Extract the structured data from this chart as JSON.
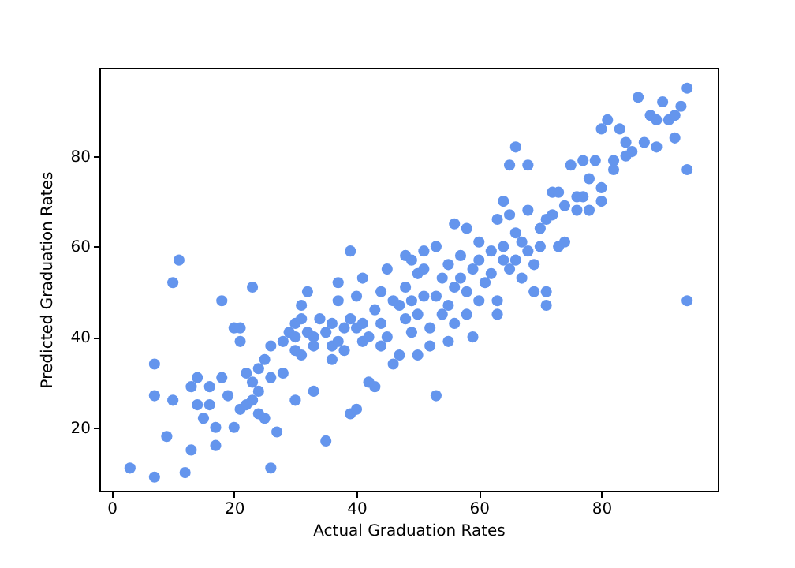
{
  "chart_data": {
    "type": "scatter",
    "xlabel": "Actual Graduation Rates",
    "ylabel": "Predicted Graduation Rates",
    "xlim": [
      -2,
      99
    ],
    "ylim": [
      6,
      99.5
    ],
    "xticks": [
      0,
      20,
      40,
      60,
      80
    ],
    "yticks": [
      20,
      40,
      60,
      80
    ],
    "grid": false,
    "marker": "circle",
    "series": [
      {
        "color": "#6495ed",
        "x": [
          3,
          7,
          7,
          7,
          9,
          10,
          11,
          10,
          12,
          13,
          13,
          14,
          14,
          15,
          16,
          16,
          17,
          17,
          18,
          18,
          19,
          20,
          20,
          21,
          21,
          21,
          22,
          22,
          23,
          23,
          23,
          24,
          24,
          24,
          25,
          25,
          26,
          26,
          26,
          27,
          28,
          28,
          29,
          30,
          30,
          30,
          30,
          31,
          31,
          31,
          32,
          32,
          33,
          33,
          33,
          34,
          35,
          35,
          36,
          36,
          36,
          37,
          37,
          37,
          38,
          38,
          39,
          39,
          39,
          40,
          40,
          40,
          41,
          41,
          41,
          42,
          42,
          43,
          43,
          44,
          44,
          44,
          45,
          45,
          46,
          46,
          47,
          47,
          48,
          48,
          48,
          49,
          49,
          49,
          50,
          50,
          50,
          51,
          51,
          51,
          52,
          52,
          53,
          53,
          53,
          54,
          54,
          55,
          55,
          55,
          56,
          56,
          56,
          57,
          57,
          58,
          58,
          58,
          59,
          59,
          60,
          60,
          60,
          61,
          62,
          62,
          63,
          63,
          63,
          64,
          64,
          64,
          65,
          65,
          65,
          66,
          66,
          66,
          67,
          67,
          68,
          68,
          68,
          69,
          69,
          70,
          70,
          71,
          71,
          71,
          72,
          72,
          73,
          73,
          74,
          74,
          75,
          76,
          76,
          77,
          77,
          78,
          78,
          79,
          80,
          80,
          80,
          81,
          82,
          82,
          83,
          84,
          84,
          85,
          86,
          87,
          88,
          89,
          89,
          90,
          91,
          92,
          92,
          93,
          94,
          94,
          94
        ],
        "values": [
          11,
          9,
          27,
          34,
          18,
          52,
          57,
          26,
          10,
          15,
          29,
          25,
          31,
          22,
          25,
          29,
          16,
          20,
          48,
          31,
          27,
          20,
          42,
          24,
          39,
          42,
          25,
          32,
          26,
          51,
          30,
          28,
          33,
          23,
          22,
          35,
          31,
          38,
          11,
          19,
          39,
          32,
          41,
          40,
          43,
          37,
          26,
          36,
          44,
          47,
          41,
          50,
          40,
          38,
          28,
          44,
          17,
          41,
          35,
          38,
          43,
          39,
          48,
          52,
          42,
          37,
          44,
          59,
          23,
          24,
          42,
          49,
          43,
          39,
          53,
          30,
          40,
          46,
          29,
          38,
          50,
          43,
          55,
          40,
          34,
          48,
          47,
          36,
          58,
          51,
          44,
          57,
          48,
          41,
          54,
          45,
          36,
          59,
          49,
          55,
          42,
          38,
          49,
          60,
          27,
          53,
          45,
          56,
          47,
          39,
          65,
          51,
          43,
          53,
          58,
          50,
          45,
          64,
          55,
          40,
          57,
          61,
          48,
          52,
          59,
          54,
          66,
          48,
          45,
          70,
          60,
          57,
          78,
          55,
          67,
          82,
          63,
          57,
          61,
          53,
          68,
          78,
          59,
          56,
          50,
          60,
          64,
          66,
          47,
          50,
          72,
          67,
          60,
          72,
          69,
          61,
          78,
          71,
          68,
          71,
          79,
          75,
          68,
          79,
          70,
          86,
          73,
          88,
          77,
          79,
          86,
          80,
          83,
          81,
          93,
          83,
          89,
          82,
          88,
          92,
          88,
          89,
          84,
          91,
          95,
          77,
          48
        ]
      }
    ]
  }
}
